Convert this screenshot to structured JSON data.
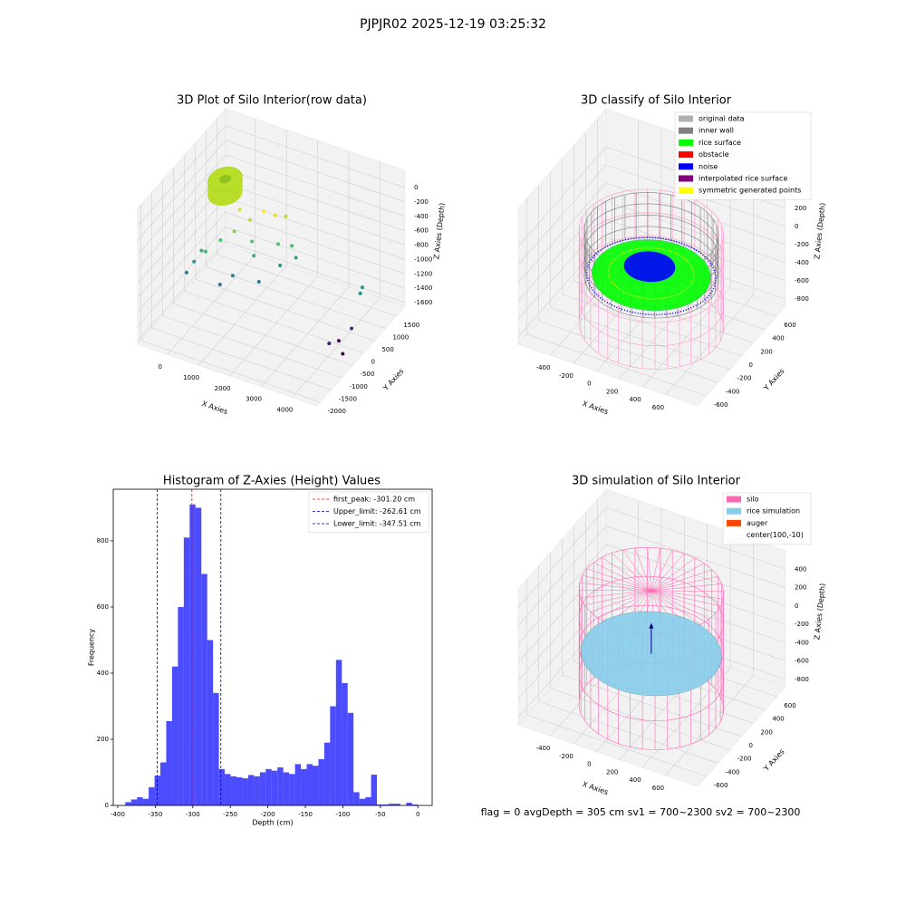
{
  "header": {
    "title": "PJPJR02 2025-12-19 03:25:32"
  },
  "footer": {
    "text": "flag = 0     avgDepth = 305 cm  sv1 = 700~2300  sv2 = 700~2300"
  },
  "chart_data": [
    {
      "type": "scatter3d",
      "title": "3D Plot of Silo Interior(row data)",
      "x_label": "X Axies",
      "y_label": "Y Axies",
      "z_label": "Z Axies (Depth)",
      "xlim": [
        -950,
        4800
      ],
      "ylim": [
        -2150,
        1900
      ],
      "zlim": [
        -1650,
        240
      ],
      "xticks": [
        0,
        1000,
        2000,
        3000,
        4000
      ],
      "yticks": [
        -2000,
        -1500,
        -1000,
        -500,
        0,
        500,
        1000,
        1500
      ],
      "zticks": [
        0,
        -200,
        -400,
        -600,
        -800,
        -1000,
        -1200,
        -1400,
        -1600
      ],
      "colormap": "viridis",
      "cylinders": [
        {
          "center": [
            -200,
            800
          ],
          "radius": 450,
          "z": [
            -450,
            -250
          ],
          "color": "#b8de29",
          "style": "solid"
        }
      ],
      "points": {
        "x": [
          4000,
          4200,
          3900,
          4300,
          4200,
          4200,
          -500,
          -600,
          -400,
          0,
          300,
          600,
          900,
          1200,
          1400,
          800,
          1000,
          1500,
          1800,
          2000,
          1700,
          600,
          400,
          1300,
          200,
          -200
        ],
        "y": [
          0,
          300,
          -300,
          -250,
          800,
          700,
          -200,
          -400,
          0,
          300,
          500,
          800,
          1000,
          1100,
          1300,
          600,
          400,
          800,
          1000,
          900,
          600,
          0,
          -300,
          200,
          900,
          -100
        ],
        "z": [
          -1600,
          -1500,
          -1550,
          -1650,
          -1100,
          -1150,
          -1100,
          -1200,
          -1000,
          -900,
          -800,
          -700,
          -600,
          -650,
          -700,
          -900,
          -1000,
          -900,
          -950,
          -1050,
          -1100,
          -1200,
          -1250,
          -1250,
          -650,
          -950
        ]
      }
    },
    {
      "type": "scatter3d",
      "title": "3D classify of Silo Interior",
      "x_label": "X Axies",
      "y_label": "Y Axies",
      "z_label": "Z Axies (Depth)",
      "xlim": [
        -680,
        880
      ],
      "ylim": [
        -750,
        750
      ],
      "zlim": [
        -880,
        620
      ],
      "xticks": [
        -400,
        -200,
        0,
        200,
        400,
        600
      ],
      "yticks": [
        -600,
        -400,
        -200,
        0,
        200,
        400,
        600
      ],
      "zticks": [
        200,
        0,
        -200,
        -400,
        -600,
        -800
      ],
      "legend": [
        {
          "name": "original data",
          "color": "#b0b0b0"
        },
        {
          "name": "inner wall",
          "color": "#808080"
        },
        {
          "name": "rice surface",
          "color": "#00ff00"
        },
        {
          "name": "obstacle",
          "color": "#ff0000"
        },
        {
          "name": "noise",
          "color": "#0000ff"
        },
        {
          "name": "interpolated rice surface",
          "color": "#800080"
        },
        {
          "name": "symmetric generated points",
          "color": "#ffff00"
        }
      ],
      "cylinders": [
        {
          "center": [
            100,
            -10
          ],
          "radius": 560,
          "z": [
            -880,
            150
          ],
          "color": "#ff99cc",
          "style": "wire"
        },
        {
          "center": [
            100,
            -10
          ],
          "radius": 520,
          "z": [
            -350,
            150
          ],
          "color": "#808080",
          "style": "wire"
        }
      ],
      "disks": [
        {
          "center": [
            100,
            -10
          ],
          "radius": 500,
          "z": -330,
          "color": "#0000ff",
          "style": "dots"
        },
        {
          "center": [
            100,
            -10
          ],
          "radius": 460,
          "z": -320,
          "color": "#00ff00",
          "style": "fill"
        },
        {
          "center": [
            100,
            -10
          ],
          "radius": 330,
          "z": -300,
          "color": "#ffff00",
          "style": "dots"
        },
        {
          "center": [
            60,
            40
          ],
          "radius": 200,
          "z": -280,
          "color": "#0000ff",
          "style": "fill"
        }
      ]
    },
    {
      "type": "histogram",
      "title": "Histogram of Z-Axies (Height) Values",
      "x_label": "Depth (cm)",
      "y_label": "Frequency",
      "color": "#0000ff",
      "alpha": 0.7,
      "bins": [
        -390,
        -382.2,
        -374.4,
        -366.6,
        -358.8,
        -351,
        -343.2,
        -335.4,
        -327.6,
        -319.8,
        -312,
        -304.2,
        -296.4,
        -288.6,
        -280.8,
        -273,
        -265.2,
        -257.4,
        -249.6,
        -241.8,
        -234,
        -226.2,
        -218.4,
        -210.6,
        -202.8,
        -195,
        -187.2,
        -179.4,
        -171.6,
        -163.8,
        -156,
        -148.2,
        -140.4,
        -132.6,
        -124.8,
        -117,
        -109.2,
        -101.4,
        -93.6,
        -85.8,
        -78,
        -70.2,
        -62.4,
        -54.6,
        -46.8,
        -39,
        -31.2,
        -23.4,
        -15.6,
        -7.8,
        0
      ],
      "counts": [
        10,
        18,
        25,
        20,
        55,
        90,
        130,
        255,
        420,
        600,
        810,
        910,
        900,
        700,
        500,
        340,
        110,
        95,
        88,
        85,
        82,
        92,
        88,
        100,
        110,
        105,
        115,
        100,
        95,
        125,
        110,
        125,
        120,
        140,
        190,
        300,
        440,
        370,
        280,
        40,
        20,
        25,
        93,
        3,
        3,
        5,
        5,
        0,
        8,
        3
      ],
      "xlim": [
        -406,
        19
      ],
      "ylim": [
        0,
        956
      ],
      "xticks": [
        -400,
        -350,
        -300,
        -250,
        -200,
        -150,
        -100,
        -50,
        0
      ],
      "yticks": [
        0,
        200,
        400,
        600,
        800
      ],
      "lines": [
        {
          "name": "first_peak: -301.20 cm",
          "value": -301.2,
          "color": "#ff0000"
        },
        {
          "name": "Upper_limit: -262.61 cm",
          "value": -262.61,
          "color": "#0000aa"
        },
        {
          "name": "Lower_limit: -347.51 cm",
          "value": -347.51,
          "color": "#0000aa"
        }
      ],
      "legend_position": "upper right"
    },
    {
      "type": "scatter3d",
      "title": "3D simulation of Silo Interior",
      "x_label": "X Axies",
      "y_label": "Y Axies",
      "z_label": "Z Axies (Depth)",
      "xlim": [
        -680,
        880
      ],
      "ylim": [
        -750,
        750
      ],
      "zlim": [
        -880,
        600
      ],
      "xticks": [
        -400,
        -200,
        0,
        200,
        400,
        600
      ],
      "yticks": [
        -600,
        -400,
        -200,
        0,
        200,
        400,
        600
      ],
      "zticks": [
        400,
        200,
        0,
        -200,
        -400,
        -600,
        -800
      ],
      "legend": [
        {
          "name": "silo",
          "color": "#ff69b4"
        },
        {
          "name": "rice simulation",
          "color": "#87ceeb"
        },
        {
          "name": "auger",
          "color": "#ff4500"
        },
        {
          "name": "center(100,-10)",
          "color": "#ffffff"
        }
      ],
      "cylinders": [
        {
          "center": [
            100,
            -10
          ],
          "radius": 560,
          "z": [
            -880,
            380
          ],
          "color": "#ff69b4",
          "style": "wire",
          "spokes": true
        }
      ],
      "disks": [
        {
          "center": [
            100,
            -10
          ],
          "radius": 545,
          "z": -305,
          "color": "#87ceeb",
          "style": "fill"
        }
      ],
      "arrow": {
        "at": [
          100,
          -10
        ],
        "z": [
          -305,
          -20
        ],
        "color": "#000080"
      }
    }
  ]
}
